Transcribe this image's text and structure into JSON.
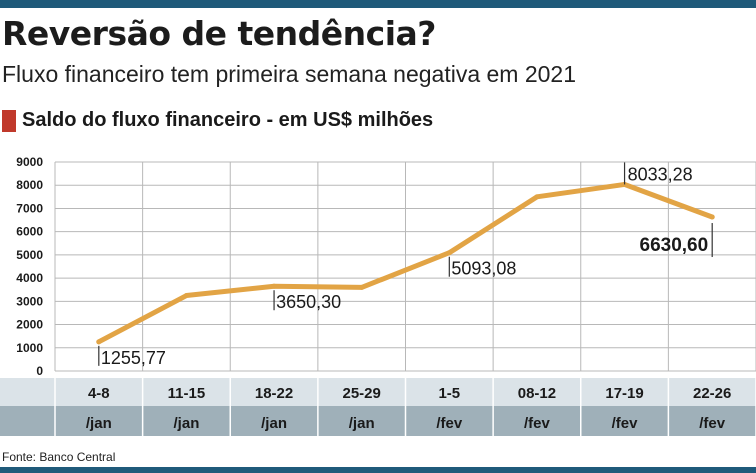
{
  "header": {
    "title": "Reversão de tendência?",
    "subtitle": "Fluxo financeiro tem primeira semana negativa em 2021"
  },
  "legend": {
    "label": "Saldo do fluxo financeiro - em US$ milhões"
  },
  "footer": {
    "source": "Fonte: Banco Central"
  },
  "colors": {
    "brand_bar": "#1f5a7a",
    "legend_square": "#c0392b",
    "line": "#e2a445",
    "band_light": "#dbe3e8",
    "band_dark": "#9fb0b9",
    "grid": "#b8b8b8"
  },
  "chart_data": {
    "type": "line",
    "title": "Saldo do fluxo financeiro - em US$ milhões",
    "xlabel": "",
    "ylabel": "",
    "ylim": [
      0,
      9000
    ],
    "y_ticks": [
      0,
      1000,
      2000,
      3000,
      4000,
      5000,
      6000,
      7000,
      8000,
      9000
    ],
    "grid": true,
    "categories": [
      {
        "top": "4-8",
        "bottom": "/jan"
      },
      {
        "top": "11-15",
        "bottom": "/jan"
      },
      {
        "top": "18-22",
        "bottom": "/jan"
      },
      {
        "top": "25-29",
        "bottom": "/jan"
      },
      {
        "top": "1-5",
        "bottom": "/fev"
      },
      {
        "top": "08-12",
        "bottom": "/fev"
      },
      {
        "top": "17-19",
        "bottom": "/fev"
      },
      {
        "top": "22-26",
        "bottom": "/fev"
      }
    ],
    "series": [
      {
        "values": [
          1255.77,
          3250,
          3650.3,
          3600,
          5093.08,
          7500,
          8033.28,
          6630.6
        ]
      }
    ],
    "annotations": [
      {
        "index": 0,
        "text": "1255,77",
        "bold": false
      },
      {
        "index": 2,
        "text": "3650,30",
        "bold": false
      },
      {
        "index": 4,
        "text": "5093,08",
        "bold": false
      },
      {
        "index": 6,
        "text": "8033,28",
        "bold": false
      },
      {
        "index": 7,
        "text": "6630,60",
        "bold": true
      }
    ]
  }
}
